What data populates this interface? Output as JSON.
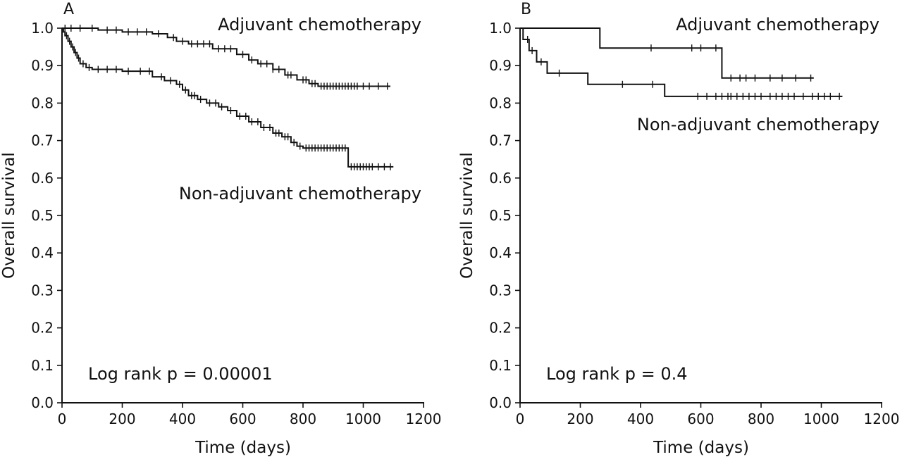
{
  "chart_data": [
    {
      "panel": "A",
      "type": "line",
      "xlabel": "Time (days)",
      "ylabel": "Overall survival",
      "xlim": [
        0,
        1200
      ],
      "ylim": [
        0.0,
        1.0
      ],
      "xticks": [
        0,
        200,
        400,
        600,
        800,
        1000,
        1200
      ],
      "yticks": [
        0.0,
        0.1,
        0.2,
        0.3,
        0.4,
        0.5,
        0.6,
        0.7,
        0.8,
        0.9,
        1.0
      ],
      "annotation": "Log rank p = 0.00001",
      "series": [
        {
          "name": "Adjuvant chemotherapy",
          "step_x": [
            0,
            120,
            200,
            300,
            350,
            380,
            420,
            500,
            580,
            620,
            650,
            700,
            740,
            780,
            820,
            850,
            1090
          ],
          "step_y": [
            1.0,
            0.995,
            0.99,
            0.985,
            0.975,
            0.965,
            0.958,
            0.945,
            0.93,
            0.915,
            0.905,
            0.89,
            0.875,
            0.862,
            0.852,
            0.845,
            0.845
          ],
          "censored_x": [
            10,
            30,
            60,
            100,
            150,
            180,
            220,
            250,
            280,
            320,
            370,
            400,
            430,
            450,
            470,
            490,
            520,
            540,
            560,
            600,
            630,
            660,
            680,
            700,
            720,
            750,
            760,
            800,
            810,
            830,
            840,
            860,
            870,
            880,
            890,
            900,
            910,
            920,
            930,
            940,
            950,
            960,
            970,
            980,
            1000,
            1020,
            1050,
            1080
          ]
        },
        {
          "name": "Non-adjuvant chemotherapy",
          "step_x": [
            0,
            5,
            10,
            20,
            30,
            40,
            50,
            60,
            80,
            100,
            200,
            300,
            340,
            380,
            400,
            420,
            450,
            480,
            520,
            550,
            580,
            620,
            660,
            700,
            730,
            760,
            780,
            800,
            950,
            1100
          ],
          "step_y": [
            1.0,
            0.99,
            0.98,
            0.965,
            0.95,
            0.935,
            0.92,
            0.905,
            0.895,
            0.89,
            0.885,
            0.87,
            0.86,
            0.85,
            0.835,
            0.82,
            0.81,
            0.8,
            0.79,
            0.78,
            0.765,
            0.75,
            0.735,
            0.72,
            0.71,
            0.695,
            0.685,
            0.68,
            0.63,
            0.63
          ],
          "censored_x": [
            15,
            25,
            35,
            45,
            55,
            70,
            90,
            120,
            150,
            180,
            220,
            260,
            290,
            330,
            360,
            390,
            410,
            430,
            440,
            460,
            490,
            510,
            530,
            560,
            590,
            610,
            630,
            650,
            670,
            690,
            710,
            720,
            740,
            750,
            770,
            790,
            810,
            820,
            830,
            840,
            850,
            860,
            870,
            880,
            890,
            900,
            910,
            920,
            930,
            940,
            960,
            970,
            980,
            990,
            1000,
            1010,
            1020,
            1030,
            1050,
            1070,
            1090
          ]
        }
      ]
    },
    {
      "panel": "B",
      "type": "line",
      "xlabel": "Time (days)",
      "ylabel": "Overall survival",
      "xlim": [
        0,
        1200
      ],
      "ylim": [
        0.0,
        1.0
      ],
      "xticks": [
        0,
        200,
        400,
        600,
        800,
        1000,
        1200
      ],
      "yticks": [
        0.0,
        0.1,
        0.2,
        0.3,
        0.4,
        0.5,
        0.6,
        0.7,
        0.8,
        0.9,
        1.0
      ],
      "annotation": "Log rank p = 0.4",
      "series": [
        {
          "name": "Adjuvant chemotherapy",
          "step_x": [
            0,
            265,
            670,
            975
          ],
          "step_y": [
            1.0,
            0.947,
            0.867,
            0.867
          ],
          "censored_x": [
            435,
            570,
            600,
            650,
            700,
            730,
            750,
            780,
            830,
            870,
            915,
            965
          ]
        },
        {
          "name": "Non-adjuvant chemotherapy",
          "step_x": [
            0,
            10,
            30,
            55,
            90,
            225,
            480,
            1070
          ],
          "step_y": [
            1.0,
            0.97,
            0.94,
            0.91,
            0.88,
            0.85,
            0.818,
            0.818
          ],
          "censored_x": [
            25,
            40,
            70,
            130,
            340,
            440,
            590,
            620,
            650,
            670,
            690,
            700,
            720,
            740,
            760,
            780,
            800,
            830,
            850,
            870,
            890,
            910,
            940,
            970,
            990,
            1010,
            1030,
            1060
          ]
        }
      ]
    }
  ],
  "panels": [
    {
      "letter": "A",
      "xlabel": "Time (days)",
      "ylabel": "Overall survival",
      "series_top_label": "Adjuvant chemotherapy",
      "series_bottom_label": "Non-adjuvant chemotherapy",
      "annotation": "Log rank p = 0.00001"
    },
    {
      "letter": "B",
      "xlabel": "Time (days)",
      "ylabel": "Overall survival",
      "series_top_label": "Adjuvant chemotherapy",
      "series_bottom_label": "Non-adjuvant chemotherapy",
      "annotation": "Log rank p = 0.4"
    }
  ]
}
